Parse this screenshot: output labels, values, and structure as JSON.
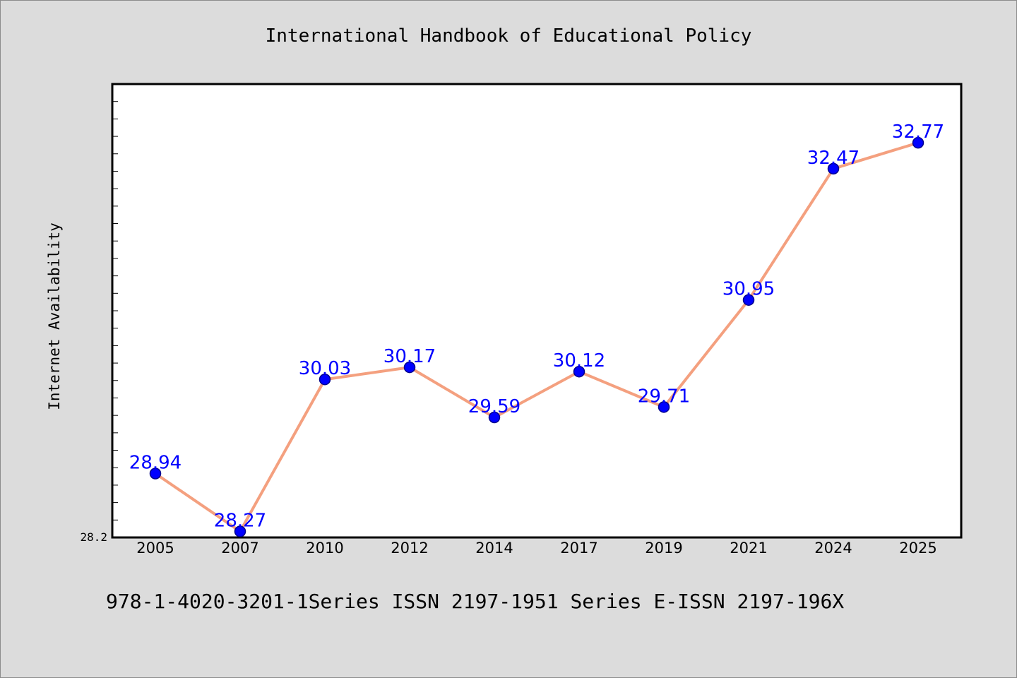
{
  "chart_data": {
    "type": "line",
    "title": "International Handbook of Educational Policy",
    "xlabel": "",
    "ylabel": "Internet Availability",
    "categories": [
      "2005",
      "2007",
      "2010",
      "2012",
      "2014",
      "2017",
      "2019",
      "2021",
      "2024",
      "2025"
    ],
    "series": [
      {
        "values": [
          28.94,
          28.27,
          30.03,
          30.17,
          29.59,
          30.12,
          29.71,
          30.95,
          32.47,
          32.77
        ],
        "labels": [
          "28.94",
          "28.27",
          "30.03",
          "30.17",
          "29.59",
          "30.12",
          "29.71",
          "30.95",
          "32.47",
          "32.77"
        ],
        "line_color": "#f4a07f",
        "marker_color": "#0000ff",
        "label_color": "#0000ff"
      }
    ],
    "ylim": [
      28.2,
      33.45
    ],
    "y_tick_label": "28.2",
    "grid": false,
    "legend": "none"
  },
  "footer": "978-1-4020-3201-1Series ISSN 2197-1951 Series E-ISSN 2197-196X",
  "colors": {
    "background": "#dcdcdc",
    "plot_background": "#ffffff",
    "axis": "#000000"
  }
}
